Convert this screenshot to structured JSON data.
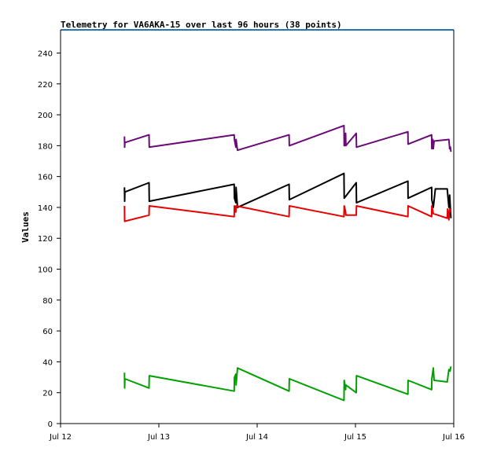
{
  "chart_data": {
    "type": "line",
    "title": "Telemetry for VA6AKA-15 over last 96 hours (38 points)",
    "xlabel": "",
    "ylabel": "Values",
    "x_ticks": [
      "Jul 12",
      "Jul 13",
      "Jul 14",
      "Jul 15",
      "Jul 16"
    ],
    "xlim": [
      0,
      96
    ],
    "ylim": [
      0,
      255
    ],
    "y_ticks": [
      0,
      20,
      40,
      60,
      80,
      100,
      120,
      140,
      160,
      180,
      200,
      220,
      240
    ],
    "grid": false,
    "series": [
      {
        "color": "#6a0a78",
        "points": [
          [
            15.6,
            186
          ],
          [
            15.65,
            179
          ],
          [
            15.7,
            182
          ],
          [
            21.6,
            187
          ],
          [
            21.65,
            179
          ],
          [
            42.4,
            187
          ],
          [
            42.45,
            184
          ],
          [
            42.8,
            179
          ],
          [
            42.85,
            184
          ],
          [
            43.2,
            177
          ],
          [
            55.8,
            187
          ],
          [
            55.85,
            180
          ],
          [
            69.2,
            193
          ],
          [
            69.25,
            180
          ],
          [
            69.5,
            181
          ],
          [
            69.6,
            188
          ],
          [
            69.65,
            180
          ],
          [
            72.2,
            188
          ],
          [
            72.25,
            179
          ],
          [
            84.8,
            189
          ],
          [
            84.85,
            181
          ],
          [
            90.6,
            187
          ],
          [
            90.65,
            178
          ],
          [
            90.9,
            184
          ],
          [
            91.0,
            178
          ],
          [
            91.2,
            183
          ],
          [
            94.8,
            184
          ],
          [
            95.0,
            178
          ],
          [
            95.2,
            179
          ],
          [
            95.3,
            176
          ]
        ]
      },
      {
        "color": "#000000",
        "points": [
          [
            15.6,
            153
          ],
          [
            15.65,
            144
          ],
          [
            15.7,
            150
          ],
          [
            21.6,
            156
          ],
          [
            21.65,
            144
          ],
          [
            42.4,
            155
          ],
          [
            42.45,
            146
          ],
          [
            42.8,
            143
          ],
          [
            42.85,
            153
          ],
          [
            43.2,
            140
          ],
          [
            55.8,
            155
          ],
          [
            55.85,
            145
          ],
          [
            69.2,
            162
          ],
          [
            69.25,
            146
          ],
          [
            72.2,
            156
          ],
          [
            72.25,
            143
          ],
          [
            84.8,
            157
          ],
          [
            84.85,
            146
          ],
          [
            90.6,
            153
          ],
          [
            90.65,
            145
          ],
          [
            91.0,
            140
          ],
          [
            91.5,
            152
          ],
          [
            94.4,
            152
          ],
          [
            94.8,
            140
          ],
          [
            95.0,
            148
          ],
          [
            95.3,
            133
          ]
        ]
      },
      {
        "color": "#e80000",
        "points": [
          [
            15.6,
            141
          ],
          [
            15.65,
            131
          ],
          [
            21.6,
            135
          ],
          [
            21.65,
            141
          ],
          [
            42.4,
            134
          ],
          [
            42.45,
            141
          ],
          [
            42.8,
            137
          ],
          [
            42.85,
            141
          ],
          [
            55.8,
            134
          ],
          [
            55.85,
            141
          ],
          [
            69.2,
            134
          ],
          [
            69.25,
            141
          ],
          [
            69.6,
            137
          ],
          [
            69.65,
            135
          ],
          [
            72.2,
            135
          ],
          [
            72.25,
            141
          ],
          [
            84.8,
            134
          ],
          [
            84.85,
            141
          ],
          [
            90.6,
            134
          ],
          [
            90.65,
            141
          ],
          [
            91.0,
            136
          ],
          [
            94.4,
            133
          ],
          [
            94.5,
            139
          ],
          [
            94.8,
            132
          ],
          [
            95.0,
            139
          ],
          [
            95.3,
            137
          ]
        ]
      },
      {
        "color": "#00a000",
        "points": [
          [
            15.6,
            33
          ],
          [
            15.65,
            23
          ],
          [
            15.7,
            29
          ],
          [
            21.6,
            23
          ],
          [
            21.65,
            31
          ],
          [
            42.4,
            21
          ],
          [
            42.45,
            30
          ],
          [
            42.8,
            32
          ],
          [
            42.85,
            25
          ],
          [
            43.2,
            36
          ],
          [
            55.8,
            21
          ],
          [
            55.85,
            29
          ],
          [
            69.2,
            15
          ],
          [
            69.25,
            28
          ],
          [
            69.6,
            22
          ],
          [
            69.65,
            25
          ],
          [
            72.2,
            20
          ],
          [
            72.25,
            31
          ],
          [
            84.8,
            19
          ],
          [
            84.85,
            28
          ],
          [
            90.6,
            22
          ],
          [
            90.65,
            29
          ],
          [
            91.0,
            36
          ],
          [
            91.2,
            28
          ],
          [
            94.4,
            27
          ],
          [
            94.8,
            35
          ],
          [
            95.1,
            34
          ],
          [
            95.3,
            37
          ]
        ]
      }
    ]
  }
}
